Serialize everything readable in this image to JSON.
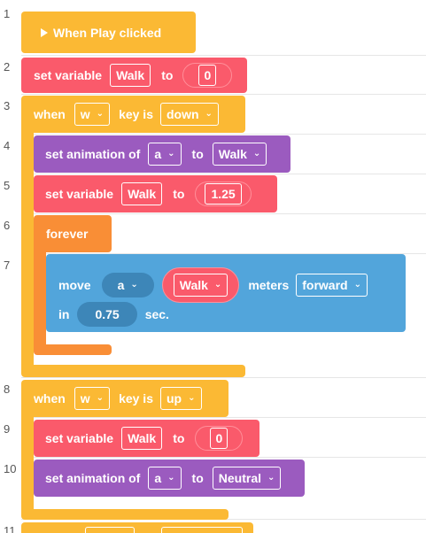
{
  "line_numbers": [
    "1",
    "2",
    "3",
    "4",
    "5",
    "6",
    "7",
    "8",
    "9",
    "10",
    "11"
  ],
  "blocks": {
    "play": {
      "label": "When Play clicked"
    },
    "set_var_walk_0": {
      "label": "set variable",
      "var": "Walk",
      "to": "to",
      "value": "0"
    },
    "when_w_down": {
      "when": "when",
      "key": "w",
      "key_is": "key is",
      "state": "down"
    },
    "anim_walk": {
      "label": "set animation of",
      "obj": "a",
      "to": "to",
      "anim": "Walk"
    },
    "set_var_walk_125": {
      "label": "set variable",
      "var": "Walk",
      "to": "to",
      "value": "1.25"
    },
    "forever": {
      "label": "forever"
    },
    "move": {
      "label": "move",
      "obj": "a",
      "var": "Walk",
      "meters": "meters",
      "dir": "forward",
      "in": "in",
      "secs": "0.75",
      "sec": "sec."
    },
    "when_w_up": {
      "when": "when",
      "key": "w",
      "key_is": "key is",
      "state": "up"
    },
    "set_var_walk_0b": {
      "label": "set variable",
      "var": "Walk",
      "to": "to",
      "value": "0"
    },
    "anim_neutral": {
      "label": "set animation of",
      "obj": "a",
      "to": "to",
      "anim": "Neutral"
    }
  },
  "colors": {
    "event": "#fbb934",
    "variable": "#fa5a6b",
    "animation": "#9b5bbf",
    "control": "#f98e36",
    "motion": "#52a5db"
  },
  "icons": [
    "play-icon",
    "chevron-down-icon"
  ]
}
